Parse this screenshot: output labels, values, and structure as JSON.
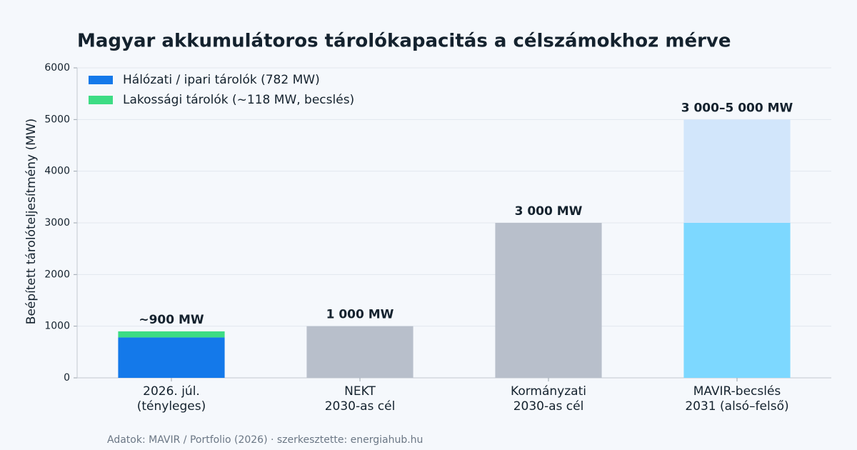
{
  "chart_data": {
    "type": "stacked_bar",
    "title": "Magyar akkumulátoros tárolókapacitás a célszámokhoz mérve",
    "ylabel": "Beépített tárolóteljesítmény (MW)",
    "source": "Adatok: MAVIR / Portfolio (2026) · szerkesztette: energiahub.hu",
    "categories": [
      [
        "2026. júl.",
        "(tényleges)"
      ],
      [
        "NEKT",
        "2030-as cél"
      ],
      [
        "Kormányzati",
        "2030-as cél"
      ],
      [
        "MAVIR-becslés",
        "2031 (alsó–felső)"
      ]
    ],
    "series": [
      {
        "name": "Hálózati / ipari tárolók (782 MW)",
        "color": "#1479ea",
        "values": [
          782,
          null,
          null,
          null
        ]
      },
      {
        "name": "Lakossági tárolók (~118 MW, becslés)",
        "color": "#3ddc84",
        "values": [
          118,
          null,
          null,
          null
        ]
      },
      {
        "color": "#b8bfcb",
        "values": [
          null,
          1000,
          3000,
          null
        ]
      },
      {
        "color": "#7dd8ff",
        "values": [
          null,
          null,
          null,
          3000
        ]
      },
      {
        "color": "#d2e6fb",
        "values": [
          null,
          null,
          null,
          2000
        ]
      }
    ],
    "bar_labels": [
      {
        "value": 900,
        "label": "~900 MW"
      },
      {
        "value": 1000,
        "label": "1 000 MW"
      },
      {
        "value": 3000,
        "label": "3 000 MW"
      },
      {
        "value": 5000,
        "label": "3 000–5 000 MW"
      }
    ],
    "ylim": [
      0,
      6000
    ],
    "yticks": [
      0,
      1000,
      2000,
      3000,
      4000,
      5000,
      6000
    ],
    "grid": true,
    "legend": "upper-left"
  }
}
